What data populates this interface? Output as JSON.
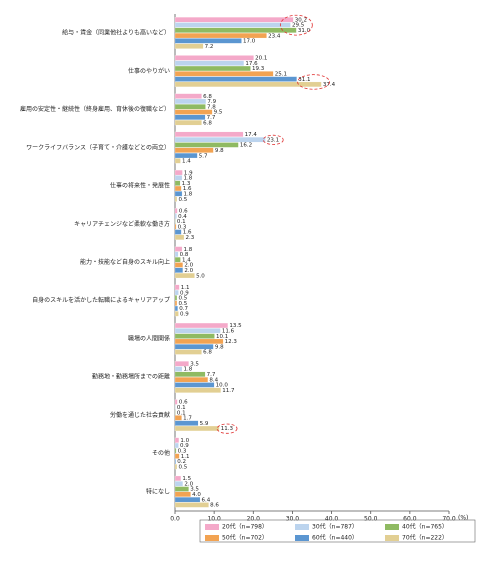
{
  "chart_data": {
    "type": "bar",
    "orientation": "horizontal",
    "categories": [
      "給与・賃金（同業他社よりも高いなど）",
      "仕事のやりがい",
      "雇用の安定性・継続性（終身雇用、育休後の復職など）",
      "ワークライフバランス（子育て・介護などとの両立）",
      "仕事の将来性・発展性",
      "キャリアチェンジなど柔軟な働き方",
      "能力・技能など自身のスキル向上",
      "自身のスキルを活かした転職によるキャリアアップ",
      "職場の人間関係",
      "勤務地・勤務場所までの距離",
      "労働を通じた社会貢献",
      "その他",
      "特になし"
    ],
    "series": [
      {
        "name": "20代（n=798）",
        "color": "#f4a9c9",
        "values": [
          30.2,
          20.1,
          6.8,
          17.4,
          1.9,
          0.6,
          1.8,
          1.1,
          13.5,
          3.5,
          0.6,
          1.0,
          1.5
        ],
        "value_labels": [
          "30.2",
          "20.1",
          "6.8",
          "17.4",
          "1.9",
          "0.6",
          "1.8",
          "1.1",
          "13.5",
          "3.5",
          "0.6",
          "1.0",
          "1.5"
        ]
      },
      {
        "name": "30代（n=787）",
        "color": "#bcd4ee",
        "values": [
          29.5,
          17.6,
          7.9,
          23.1,
          1.8,
          0.4,
          0.8,
          0.9,
          11.6,
          1.8,
          0.1,
          0.9,
          2.0
        ],
        "value_labels": [
          "29.5",
          "17.6",
          "7.9",
          "23.1",
          "1.8",
          "0.4",
          "0.8",
          "0.9",
          "11.6",
          "1.8",
          "0.1",
          "0.9",
          "2.0"
        ]
      },
      {
        "name": "40代（n=765）",
        "color": "#8fba62",
        "values": [
          31.0,
          19.3,
          7.8,
          16.2,
          1.3,
          0.1,
          1.4,
          0.5,
          10.1,
          7.7,
          0.1,
          0.3,
          3.5
        ],
        "value_labels": [
          "31.0",
          "19.3",
          "7.8",
          "16.2",
          "1.3",
          "0.1",
          "1.4",
          "0.5",
          "10.1",
          "7.7",
          "0.1",
          "0.3",
          "3.5"
        ]
      },
      {
        "name": "50代（n=702）",
        "color": "#f2a352",
        "values": [
          23.4,
          25.1,
          9.5,
          9.8,
          1.6,
          0.3,
          2.0,
          0.5,
          12.3,
          8.4,
          1.7,
          1.1,
          4.0
        ],
        "value_labels": [
          "23.4",
          "25.1",
          "9.5",
          "9.8",
          "1.6",
          "0.3",
          "2.0",
          "0.5",
          "12.3",
          "8.4",
          "1.7",
          "1.1",
          "4.0"
        ]
      },
      {
        "name": "60代（n=440）",
        "color": "#5b96d1",
        "values": [
          17.0,
          31.1,
          7.7,
          5.7,
          1.8,
          1.6,
          2.0,
          0.7,
          9.8,
          10.0,
          5.9,
          0.2,
          6.4
        ],
        "value_labels": [
          "17.0",
          "31.1",
          "7.7",
          "5.7",
          "1.8",
          "1.6",
          "2.0",
          "0.7",
          "9.8",
          "10.0",
          "5.9",
          "0.2",
          "6.4"
        ]
      },
      {
        "name": "70代（n=222）",
        "color": "#e2cf93",
        "values": [
          7.2,
          37.4,
          6.8,
          1.4,
          0.5,
          2.3,
          5.0,
          0.9,
          6.8,
          11.7,
          11.3,
          0.5,
          8.6
        ],
        "value_labels": [
          "7.2",
          "37.4",
          "6.8",
          "1.4",
          "0.5",
          "2.3",
          "5.0",
          "0.9",
          "6.8",
          "11.7",
          "11.3",
          "0.5",
          "8.6"
        ]
      }
    ],
    "xlim": [
      0,
      70
    ],
    "xticks": [
      {
        "value": 0,
        "label": "0.0"
      },
      {
        "value": 10,
        "label": "10.0"
      },
      {
        "value": 20,
        "label": "20.0"
      },
      {
        "value": 30,
        "label": "30.0"
      },
      {
        "value": 40,
        "label": "40.0"
      },
      {
        "value": 50,
        "label": "50.0"
      },
      {
        "value": 60,
        "label": "60.0"
      },
      {
        "value": 70,
        "label": "70.0"
      }
    ],
    "x_unit": "(%)",
    "legend": "bottom"
  }
}
